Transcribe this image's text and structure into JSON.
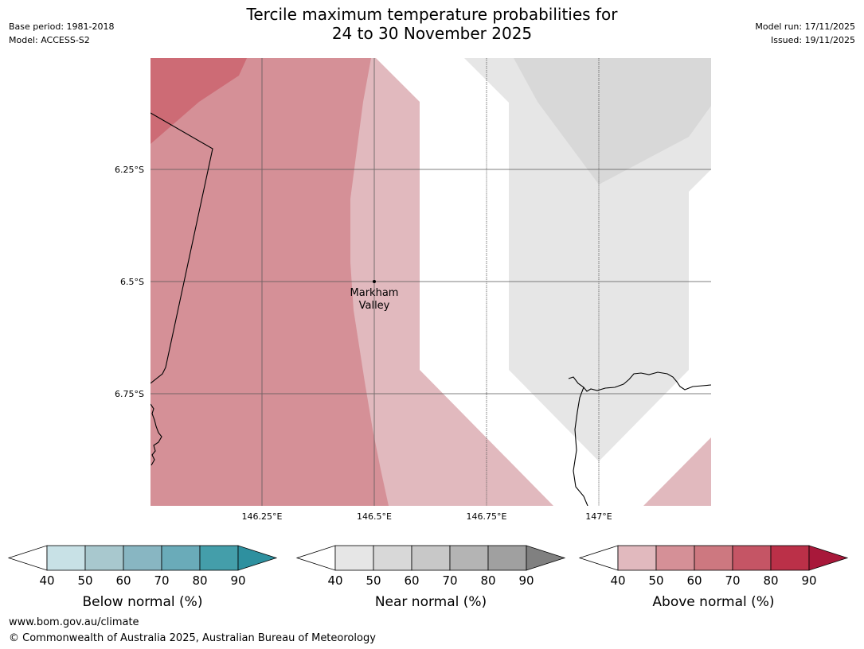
{
  "header": {
    "title_line1": "Tercile maximum temperature probabilities for",
    "title_line2": "24 to 30 November 2025",
    "base_period": "Base period: 1981-2018",
    "model": "Model: ACCESS-S2",
    "model_run": "Model run: 17/11/2025",
    "issued": "Issued: 19/11/2025"
  },
  "map": {
    "latitude_labels": [
      "6.25°S",
      "6.5°S",
      "6.75°S"
    ],
    "longitude_labels": [
      "146.25°E",
      "146.5°E",
      "146.75°E",
      "147°E"
    ],
    "place": {
      "line1": "Markham",
      "line2": "Valley"
    },
    "colors": {
      "above_50": "#e1b9be",
      "above_60": "#d59097",
      "above_70": "#cd6b75",
      "near_40": "#e6e6e6",
      "near_50": "#d8d8d8"
    }
  },
  "legends": [
    {
      "title": "Below normal (%)",
      "ticks": [
        "40",
        "50",
        "60",
        "70",
        "80",
        "90"
      ],
      "colors": [
        "#ffffff",
        "#c8e1e6",
        "#a8c8ce",
        "#88b6c2",
        "#6aabb9",
        "#449eaa",
        "#2e909f"
      ]
    },
    {
      "title": "Near normal (%)",
      "ticks": [
        "40",
        "50",
        "60",
        "70",
        "80",
        "90"
      ],
      "colors": [
        "#ffffff",
        "#e6e6e6",
        "#d8d8d8",
        "#c8c8c8",
        "#b4b4b4",
        "#a0a0a0",
        "#808080"
      ]
    },
    {
      "title": "Above normal (%)",
      "ticks": [
        "40",
        "50",
        "60",
        "70",
        "80",
        "90"
      ],
      "colors": [
        "#ffffff",
        "#e1b9be",
        "#d59097",
        "#cd7880",
        "#c55565",
        "#bb3048",
        "#a8183a"
      ]
    }
  ],
  "footer": {
    "url": "www.bom.gov.au/climate",
    "copyright": "© Commonwealth of Australia 2025, Australian Bureau of Meteorology"
  }
}
